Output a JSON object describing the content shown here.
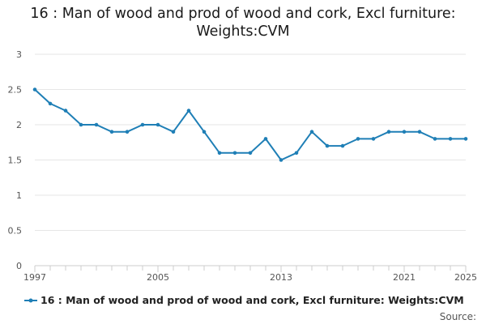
{
  "title": "16 : Man of wood and prod of wood and cork, Excl furniture: Weights:CVM",
  "legend_label": "16 : Man of wood and prod of wood and cork, Excl furniture: Weights:CVM",
  "source_label": "Source:",
  "colors": {
    "series": "#1f7fb6",
    "grid": "#e6e6e6",
    "axis": "#cccccc",
    "text": "#555555"
  },
  "chart_data": {
    "type": "line",
    "title": "16 : Man of wood and prod of wood and cork, Excl furniture: Weights:CVM",
    "xlabel": "",
    "ylabel": "",
    "ylim": [
      0,
      3
    ],
    "xlim": [
      1997,
      2025
    ],
    "yticks": [
      0,
      0.5,
      1,
      1.5,
      2,
      2.5,
      3
    ],
    "xtick_labels": [
      1997,
      2005,
      2013,
      2021,
      2025
    ],
    "grid": true,
    "legend_position": "bottom",
    "series": [
      {
        "name": "16 : Man of wood and prod of wood and cork, Excl furniture: Weights:CVM",
        "x": [
          1997,
          1998,
          1999,
          2000,
          2001,
          2002,
          2003,
          2004,
          2005,
          2006,
          2007,
          2008,
          2009,
          2010,
          2011,
          2012,
          2013,
          2014,
          2015,
          2016,
          2017,
          2018,
          2019,
          2020,
          2021,
          2022,
          2023,
          2024,
          2025
        ],
        "values": [
          2.5,
          2.3,
          2.2,
          2.0,
          2.0,
          1.9,
          1.9,
          2.0,
          2.0,
          1.9,
          2.2,
          1.9,
          1.6,
          1.6,
          1.6,
          1.8,
          1.5,
          1.6,
          1.9,
          1.7,
          1.7,
          1.8,
          1.8,
          1.9,
          1.9,
          1.9,
          1.8,
          1.8,
          1.8
        ]
      }
    ]
  }
}
